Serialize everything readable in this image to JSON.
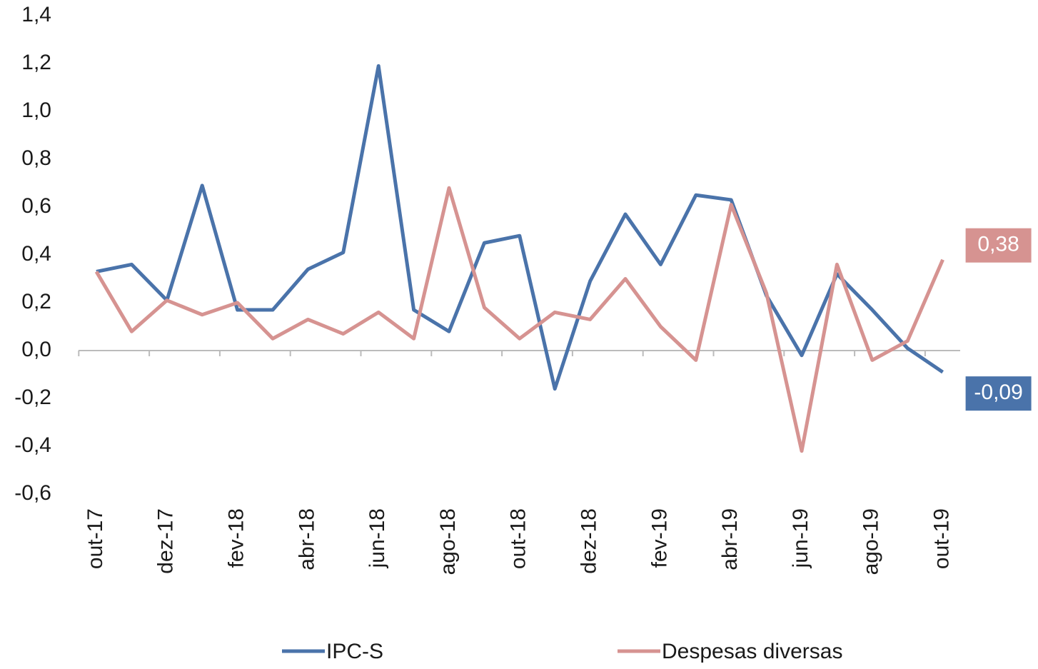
{
  "chart_data": {
    "type": "line",
    "categories": [
      "out-17",
      null,
      "dez-17",
      null,
      "fev-18",
      null,
      "abr-18",
      null,
      "jun-18",
      null,
      "ago-18",
      null,
      "out-18",
      null,
      "dez-18",
      null,
      "fev-19",
      null,
      "abr-19",
      null,
      "jun-19",
      null,
      "ago-19",
      null,
      "out-19"
    ],
    "series": [
      {
        "name": "IPC-S",
        "color": "#4a73aa",
        "values": [
          0.33,
          0.36,
          0.21,
          0.69,
          0.17,
          0.17,
          0.34,
          0.41,
          1.19,
          0.17,
          0.08,
          0.45,
          0.48,
          -0.16,
          0.29,
          0.57,
          0.36,
          0.65,
          0.63,
          0.23,
          -0.02,
          0.32,
          0.17,
          0.01,
          -0.09
        ],
        "value_labels": [
          null,
          null,
          null,
          null,
          null,
          null,
          null,
          null,
          null,
          null,
          null,
          null,
          null,
          null,
          null,
          null,
          null,
          null,
          null,
          null,
          null,
          null,
          null,
          null,
          "-0,09"
        ]
      },
      {
        "name": "Despesas diversas",
        "color": "#d69391",
        "values": [
          0.33,
          0.08,
          0.21,
          0.15,
          0.2,
          0.05,
          0.13,
          0.07,
          0.16,
          0.05,
          0.68,
          0.18,
          0.05,
          0.16,
          0.13,
          0.3,
          0.1,
          -0.04,
          0.61,
          0.24,
          -0.42,
          0.36,
          -0.04,
          0.04,
          0.38
        ],
        "value_labels": [
          null,
          null,
          null,
          null,
          null,
          null,
          null,
          null,
          null,
          null,
          null,
          null,
          null,
          null,
          null,
          null,
          null,
          null,
          null,
          null,
          null,
          null,
          null,
          null,
          "0,38"
        ]
      }
    ],
    "ylim": [
      -0.6,
      1.4
    ],
    "yticks": [
      {
        "value": -0.6,
        "label": "-0,6"
      },
      {
        "value": -0.4,
        "label": "-0,4"
      },
      {
        "value": -0.2,
        "label": "-0,2"
      },
      {
        "value": 0,
        "label": "0,0"
      },
      {
        "value": 0.2,
        "label": "0,2"
      },
      {
        "value": 0.4,
        "label": "0,4"
      },
      {
        "value": 0.6,
        "label": "0,6"
      },
      {
        "value": 0.8,
        "label": "0,8"
      },
      {
        "value": 1.0,
        "label": "1,0"
      },
      {
        "value": 1.2,
        "label": "1,2"
      },
      {
        "value": 1.4,
        "label": "1,4"
      }
    ],
    "grid": false,
    "legend": "bottom"
  }
}
